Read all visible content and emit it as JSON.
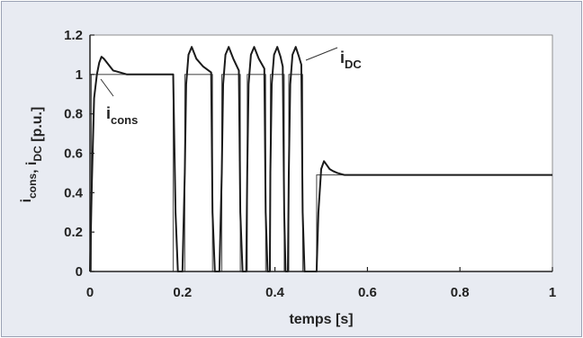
{
  "chart_data": {
    "type": "line",
    "xlabel": "temps [s]",
    "ylabel": {
      "parts": [
        {
          "text": "i",
          "sub": "cons"
        },
        {
          "text": ", "
        },
        {
          "text": "i",
          "sub": "DC"
        },
        {
          "text": " [p.u.]"
        }
      ]
    },
    "xlim": [
      0,
      1
    ],
    "ylim": [
      0,
      1.2
    ],
    "x_ticks": [
      "0",
      "0.2",
      "0.4",
      "0.6",
      "0.8",
      "1"
    ],
    "y_ticks": [
      "0",
      "0.2",
      "0.4",
      "0.6",
      "0.8",
      "1",
      "1.2"
    ],
    "grid": false,
    "annotations": [
      {
        "text": "i",
        "sub": "cons",
        "series": "i_cons"
      },
      {
        "text": "i",
        "sub": "DC",
        "series": "i_DC"
      }
    ],
    "series": [
      {
        "name": "i_cons",
        "x": [
          0,
          0.003,
          0.003,
          0.18,
          0.18,
          0.205,
          0.205,
          0.265,
          0.265,
          0.285,
          0.285,
          0.325,
          0.325,
          0.34,
          0.34,
          0.38,
          0.38,
          0.39,
          0.39,
          0.42,
          0.42,
          0.43,
          0.43,
          0.46,
          0.46,
          0.49,
          0.49,
          1.0
        ],
        "y": [
          0,
          0,
          1.0,
          1.0,
          0,
          0,
          1.0,
          1.0,
          0,
          0,
          1.0,
          1.0,
          0,
          0,
          1.0,
          1.0,
          0,
          0,
          1.0,
          1.0,
          0,
          0,
          1.0,
          1.0,
          0,
          0,
          0.49,
          0.49
        ]
      },
      {
        "name": "i_DC",
        "x": [
          0,
          0.004,
          0.009,
          0.015,
          0.02,
          0.025,
          0.03,
          0.04,
          0.05,
          0.065,
          0.08,
          0.1,
          0.18,
          0.185,
          0.19,
          0.2,
          0.205,
          0.208,
          0.213,
          0.22,
          0.23,
          0.245,
          0.262,
          0.265,
          0.27,
          0.28,
          0.285,
          0.288,
          0.293,
          0.3,
          0.31,
          0.322,
          0.325,
          0.33,
          0.338,
          0.34,
          0.343,
          0.348,
          0.355,
          0.365,
          0.377,
          0.38,
          0.384,
          0.389,
          0.39,
          0.393,
          0.398,
          0.405,
          0.412,
          0.417,
          0.42,
          0.423,
          0.428,
          0.43,
          0.433,
          0.438,
          0.445,
          0.452,
          0.457,
          0.46,
          0.464,
          0.474,
          0.49,
          0.494,
          0.5,
          0.506,
          0.512,
          0.518,
          0.525,
          0.535,
          0.55,
          0.57,
          0.6,
          0.65,
          0.7,
          0.75,
          0.8,
          0.85,
          0.9,
          0.95,
          1.0
        ],
        "y": [
          0,
          0.45,
          0.88,
          1.0,
          1.06,
          1.09,
          1.08,
          1.05,
          1.02,
          1.01,
          1.0,
          1.0,
          1.0,
          0.3,
          0,
          0,
          0.5,
          0.95,
          1.1,
          1.14,
          1.08,
          1.04,
          1.01,
          0.3,
          0,
          0,
          0.5,
          0.95,
          1.1,
          1.14,
          1.08,
          1.02,
          0.3,
          0,
          0,
          0.5,
          0.95,
          1.1,
          1.14,
          1.08,
          1.03,
          0.3,
          0,
          0,
          0.5,
          0.95,
          1.1,
          1.14,
          1.09,
          1.04,
          0.3,
          0,
          0,
          0.5,
          0.95,
          1.1,
          1.14,
          1.09,
          1.05,
          0.3,
          0,
          0,
          0,
          0.3,
          0.52,
          0.56,
          0.54,
          0.52,
          0.51,
          0.5,
          0.49,
          0.49,
          0.49,
          0.49,
          0.49,
          0.49,
          0.49,
          0.49,
          0.49,
          0.49,
          0.49
        ]
      }
    ]
  }
}
